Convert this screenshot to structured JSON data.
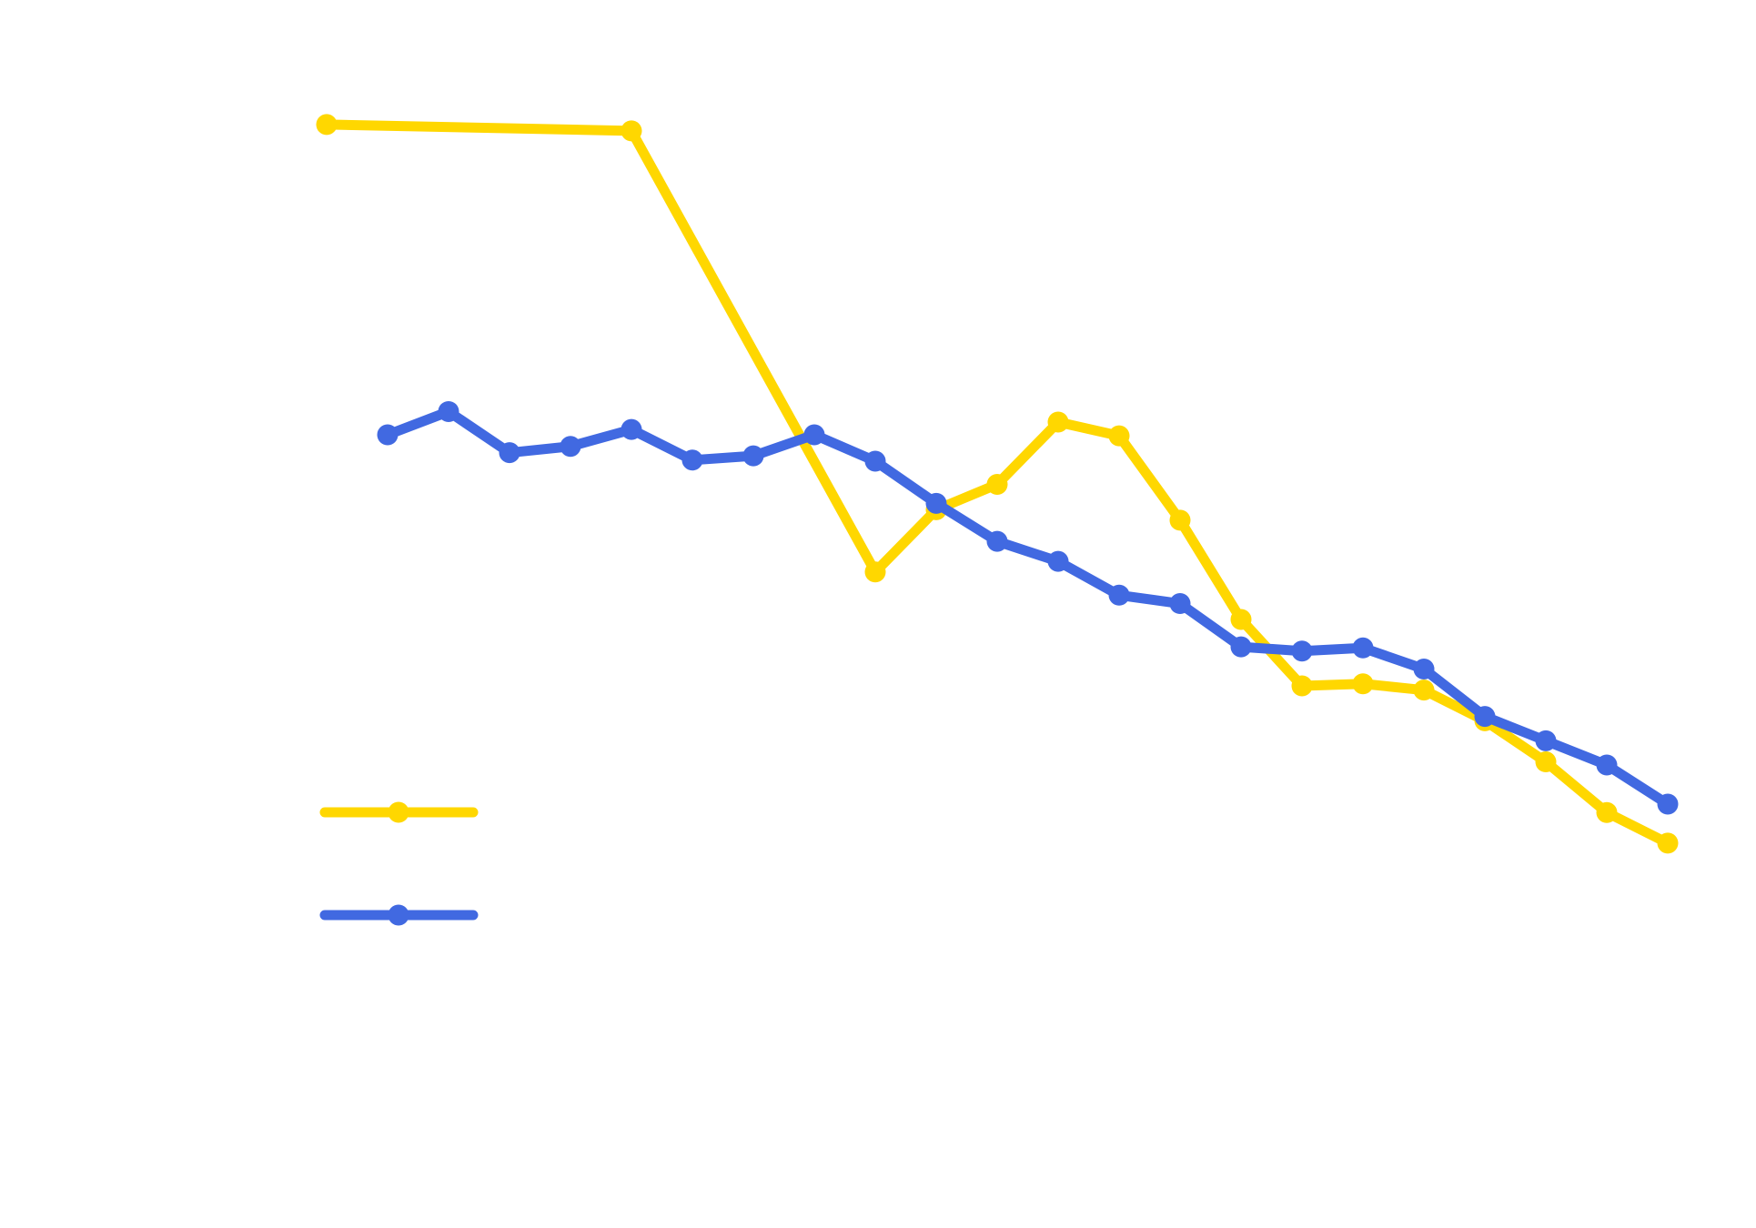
{
  "chart_data": {
    "type": "line",
    "title": "",
    "xlabel": "",
    "ylabel": "",
    "grid": false,
    "legend_position": "lower-left",
    "xlim": [
      1,
      23
    ],
    "ylim": [
      0,
      1
    ],
    "series": [
      {
        "color": "#FFD700",
        "points": [
          {
            "x": 1,
            "y": 0.963
          },
          {
            "x": 6,
            "y": 0.957
          },
          {
            "x": 10,
            "y": 0.539
          },
          {
            "x": 11,
            "y": 0.598
          },
          {
            "x": 12,
            "y": 0.622
          },
          {
            "x": 13,
            "y": 0.681
          },
          {
            "x": 14,
            "y": 0.668
          },
          {
            "x": 15,
            "y": 0.588
          },
          {
            "x": 16,
            "y": 0.494
          },
          {
            "x": 17,
            "y": 0.431
          },
          {
            "x": 18,
            "y": 0.433
          },
          {
            "x": 19,
            "y": 0.427
          },
          {
            "x": 20,
            "y": 0.398
          },
          {
            "x": 21,
            "y": 0.359
          },
          {
            "x": 22,
            "y": 0.311
          },
          {
            "x": 23,
            "y": 0.282
          }
        ]
      },
      {
        "color": "#4169E1",
        "points": [
          {
            "x": 2,
            "y": 0.669
          },
          {
            "x": 3,
            "y": 0.691
          },
          {
            "x": 4,
            "y": 0.652
          },
          {
            "x": 5,
            "y": 0.658
          },
          {
            "x": 6,
            "y": 0.674
          },
          {
            "x": 7,
            "y": 0.645
          },
          {
            "x": 8,
            "y": 0.649
          },
          {
            "x": 9,
            "y": 0.669
          },
          {
            "x": 10,
            "y": 0.644
          },
          {
            "x": 11,
            "y": 0.604
          },
          {
            "x": 12,
            "y": 0.568
          },
          {
            "x": 13,
            "y": 0.549
          },
          {
            "x": 14,
            "y": 0.517
          },
          {
            "x": 15,
            "y": 0.509
          },
          {
            "x": 16,
            "y": 0.468
          },
          {
            "x": 17,
            "y": 0.464
          },
          {
            "x": 18,
            "y": 0.467
          },
          {
            "x": 19,
            "y": 0.447
          },
          {
            "x": 20,
            "y": 0.402
          },
          {
            "x": 21,
            "y": 0.379
          },
          {
            "x": 22,
            "y": 0.356
          },
          {
            "x": 23,
            "y": 0.319
          }
        ]
      }
    ]
  }
}
